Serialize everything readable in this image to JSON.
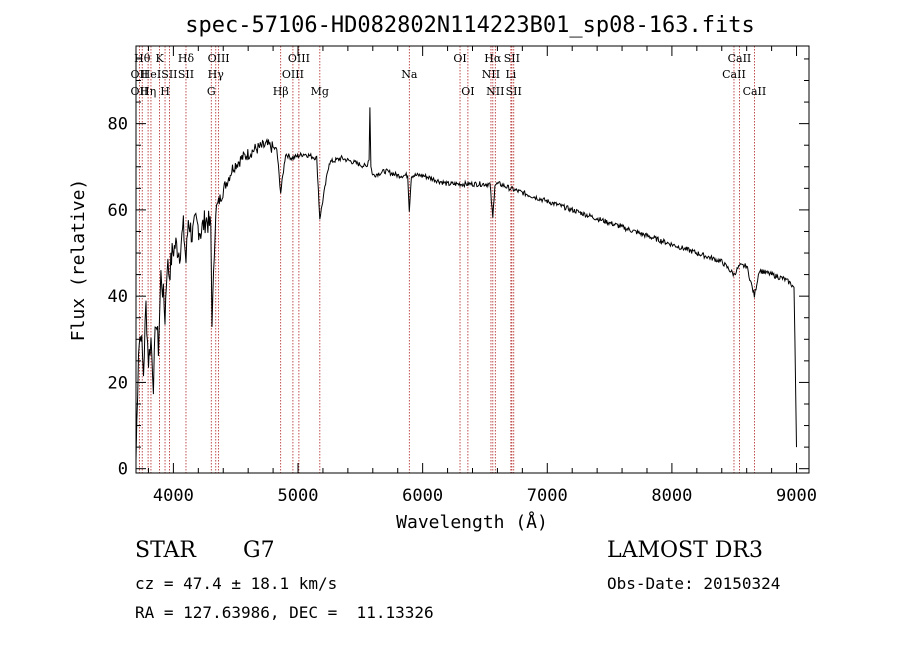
{
  "chart_data": {
    "type": "line",
    "title": "spec-57106-HD082802N114223B01_sp08-163.fits",
    "xlabel": "Wavelength (Å)",
    "ylabel": "Flux (relative)",
    "xlim": [
      3700,
      9100
    ],
    "ylim": [
      -1,
      98
    ],
    "xticks": [
      4000,
      5000,
      6000,
      7000,
      8000,
      9000
    ],
    "xtick_labels": [
      "4000",
      "5000",
      "6000",
      "7000",
      "8000",
      "9000"
    ],
    "yticks": [
      0,
      20,
      40,
      60,
      80
    ],
    "ytick_labels": [
      "0",
      "20",
      "40",
      "60",
      "80"
    ],
    "grid": false,
    "series": [
      {
        "name": "spectrum",
        "color": "#000000",
        "x": [
          3700,
          3720,
          3740,
          3760,
          3780,
          3800,
          3820,
          3840,
          3860,
          3880,
          3900,
          3920,
          3933,
          3950,
          3968,
          3990,
          4020,
          4050,
          4080,
          4101,
          4120,
          4150,
          4180,
          4220,
          4260,
          4300,
          4310,
          4340,
          4380,
          4420,
          4480,
          4550,
          4650,
          4750,
          4830,
          4861,
          4900,
          4950,
          5050,
          5150,
          5175,
          5250,
          5350,
          5450,
          5550,
          5570,
          5577,
          5585,
          5600,
          5700,
          5800,
          5880,
          5893,
          5910,
          6000,
          6100,
          6200,
          6300,
          6400,
          6500,
          6540,
          6563,
          6580,
          6620,
          6700,
          6800,
          6900,
          7000,
          7100,
          7200,
          7300,
          7400,
          7500,
          7600,
          7700,
          7800,
          7900,
          8000,
          8100,
          8200,
          8300,
          8400,
          8498,
          8542,
          8600,
          8662,
          8700,
          8800,
          8900,
          8950,
          8980,
          9000
        ],
        "y": [
          2,
          28,
          32,
          22,
          38,
          25,
          30,
          20,
          35,
          28,
          45,
          40,
          35,
          48,
          45,
          50,
          52,
          50,
          56,
          48,
          58,
          54,
          57,
          55,
          58,
          56,
          34,
          60,
          63,
          66,
          70,
          72,
          74,
          75,
          74,
          64,
          73,
          72,
          73,
          72,
          58,
          71,
          72,
          71,
          70,
          72,
          84,
          70,
          68,
          69,
          68,
          68,
          60,
          68,
          68,
          67,
          66,
          66,
          66,
          66,
          66,
          58,
          66,
          66,
          65,
          64,
          63,
          62,
          61,
          60,
          59,
          58,
          57,
          56,
          55,
          54,
          53,
          52,
          51,
          50,
          49,
          48,
          45,
          47,
          47,
          40,
          46,
          45,
          44,
          43,
          42,
          5
        ]
      }
    ],
    "lines": [
      {
        "wavelength": 3727,
        "label": "OII",
        "row": 2
      },
      {
        "wavelength": 3727,
        "label": "OII",
        "row": 3
      },
      {
        "wavelength": 3750,
        "label": "Hθ",
        "row": 1
      },
      {
        "wavelength": 3797,
        "label": "Hη",
        "row": 3
      },
      {
        "wavelength": 3820,
        "label": "HeI",
        "row": 2
      },
      {
        "wavelength": 3889,
        "label": "K",
        "row": 1
      },
      {
        "wavelength": 3933,
        "label": "H",
        "row": 3
      },
      {
        "wavelength": 3968,
        "label": "SII",
        "row": 2
      },
      {
        "wavelength": 4101,
        "label": "Hδ",
        "row": 1
      },
      {
        "wavelength": 4101,
        "label": "SII",
        "row": 2
      },
      {
        "wavelength": 4304,
        "label": "G",
        "row": 3
      },
      {
        "wavelength": 4340,
        "label": "Hγ",
        "row": 2
      },
      {
        "wavelength": 4363,
        "label": "OIII",
        "row": 1
      },
      {
        "wavelength": 4861,
        "label": "Hβ",
        "row": 3
      },
      {
        "wavelength": 4959,
        "label": "OIII",
        "row": 2
      },
      {
        "wavelength": 5007,
        "label": "OIII",
        "row": 1
      },
      {
        "wavelength": 5175,
        "label": "Mg",
        "row": 3
      },
      {
        "wavelength": 5893,
        "label": "Na",
        "row": 2
      },
      {
        "wavelength": 6300,
        "label": "OI",
        "row": 1
      },
      {
        "wavelength": 6363,
        "label": "OI",
        "row": 3
      },
      {
        "wavelength": 6548,
        "label": "NII",
        "row": 2
      },
      {
        "wavelength": 6563,
        "label": "Hα",
        "row": 1
      },
      {
        "wavelength": 6583,
        "label": "NII",
        "row": 3
      },
      {
        "wavelength": 6708,
        "label": "Li",
        "row": 2
      },
      {
        "wavelength": 6716,
        "label": "SII",
        "row": 1
      },
      {
        "wavelength": 6731,
        "label": "SII",
        "row": 3
      },
      {
        "wavelength": 8498,
        "label": "CaII",
        "row": 2
      },
      {
        "wavelength": 8542,
        "label": "CaII",
        "row": 1
      },
      {
        "wavelength": 8662,
        "label": "CaII",
        "row": 3
      }
    ]
  },
  "info": {
    "object_class": "STAR",
    "subclass": "G7",
    "redshift": "cz = 47.4 ± 18.1 km/s",
    "coords": "RA = 127.63986, DEC =  11.13326",
    "survey": "LAMOST DR3",
    "obs_date": "Obs-Date: 20150324"
  }
}
